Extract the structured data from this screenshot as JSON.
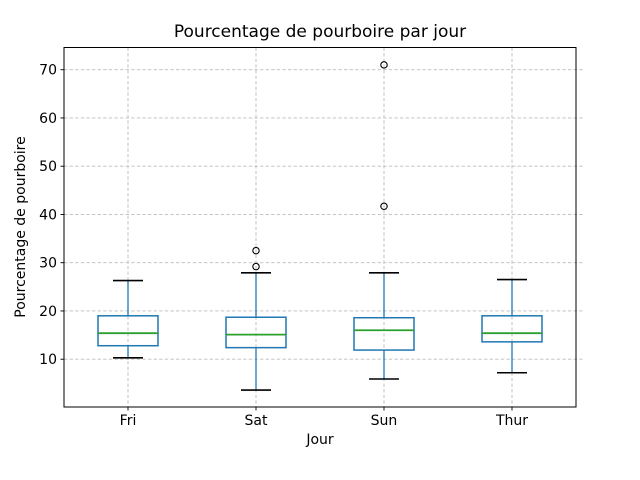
{
  "chart_data": {
    "type": "box",
    "title": "Pourcentage de pourboire par jour",
    "xlabel": "Jour",
    "ylabel": "Pourcentage de pourboire",
    "categories": [
      "Fri",
      "Sat",
      "Sun",
      "Thur"
    ],
    "series": [
      {
        "name": "Fri",
        "whislo": 10.3,
        "q1": 12.8,
        "med": 15.4,
        "q3": 19.0,
        "whishi": 26.3,
        "fliers": []
      },
      {
        "name": "Sat",
        "whislo": 3.6,
        "q1": 12.4,
        "med": 15.1,
        "q3": 18.7,
        "whishi": 27.9,
        "fliers": [
          29.2,
          32.5
        ]
      },
      {
        "name": "Sun",
        "whislo": 5.9,
        "q1": 11.9,
        "med": 16.0,
        "q3": 18.6,
        "whishi": 27.9,
        "fliers": [
          41.7,
          71.0
        ]
      },
      {
        "name": "Thur",
        "whislo": 7.2,
        "q1": 13.6,
        "med": 15.4,
        "q3": 19.0,
        "whishi": 26.5,
        "fliers": []
      }
    ],
    "yticks": [
      10,
      20,
      30,
      40,
      50,
      60,
      70
    ],
    "ylim": [
      0.1,
      74.6
    ],
    "grid": true,
    "legend": "none",
    "colors": {
      "box": "#1f77b4",
      "whisker": "#1f77b4",
      "median": "#2ca02c",
      "cap": "#000000",
      "flier_edge": "#000000",
      "grid": "#bdbdbd",
      "axis": "#000000",
      "text": "#000000",
      "background": "#ffffff"
    }
  }
}
